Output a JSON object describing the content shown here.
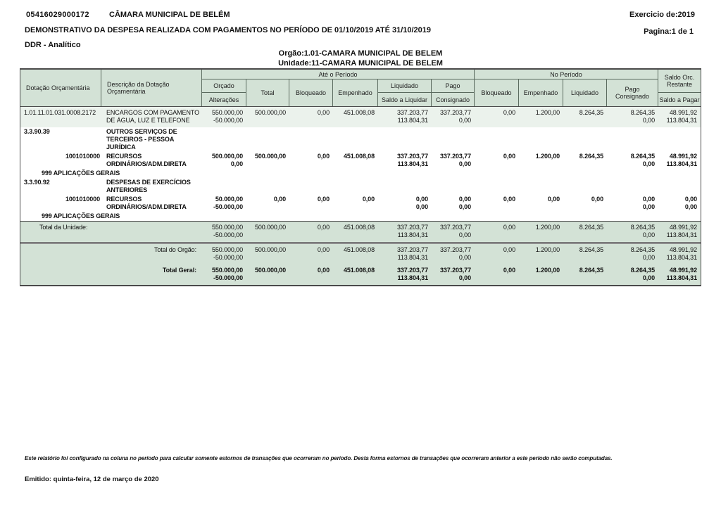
{
  "page_header": {
    "code": "05416029000172",
    "entity": "CÂMARA MUNICIPAL DE BELÉM",
    "title": "DEMONSTRATIVO DA DESPESA REALIZADA COM PAGAMENTOS NO PERÍODO DE 01/10/2019 ATÉ 31/10/2019",
    "report_type": "DDR - Analítico",
    "exercise": "Exercicio de:2019",
    "page": "Pagina:1 de 1",
    "orgao": "Orgão:1.01-CAMARA MUNICIPAL DE BELEM",
    "unidade": "Unidade:11-CAMARA MUNICIPAL DE BELEM"
  },
  "colors": {
    "header_band_green": "#d3e2d6",
    "row_stripe_green": "#ebf2ec",
    "border_gray": "#4a4a4a"
  },
  "table": {
    "headers": {
      "dotacao": "Dotação Orçamentária",
      "descricao_line1": "Descrição da Dotação",
      "descricao_line2": "Orçamentária",
      "group_ate": "Até o Período",
      "group_no": "No Período",
      "orcado": "Orçado",
      "alteracoes": "Alterações",
      "total": "Total",
      "bloqueado": "Bloqueado",
      "empenhado": "Empenhado",
      "liquidado": "Liquidado",
      "saldo_a_liquidar": "Saldo a Liquidar",
      "pago": "Pago",
      "consignado": "Consignado",
      "bloqueado_np": "Bloqueado",
      "empenhado_np": "Empenhado",
      "liquidado_np": "Liquidado",
      "pago_np": "Pago",
      "consignado_np": "Consignado",
      "saldo_orc_line1": "Saldo Orc.",
      "saldo_orc_line2": "Restante",
      "saldo_a_pagar": "Saldo a Pagar"
    },
    "rows": [
      {
        "dotacao": "1.01.11.01.031.0008.2172",
        "descricao1": "ENCARGOS COM PAGAMENTO",
        "descricao2": "DE ÁGUA, LUZ E TELEFONE",
        "orcado": "550.000,00",
        "alteracoes": "-50.000,00",
        "total": "500.000,00",
        "bloqueado": "0,00",
        "empenhado": "451.008,08",
        "liquidado": "337.203,77",
        "saldo_a_liquidar": "113.804,31",
        "pago": "337.203,77",
        "consignado": "0,00",
        "bloqueado_np": "0,00",
        "empenhado_np": "1.200,00",
        "liquidado_np": "8.264,35",
        "pago_np": "8.264,35",
        "consignado_np": "0,00",
        "saldo_restante": "48.991,92",
        "saldo_a_pagar": "113.804,31"
      },
      {
        "dotacao": "3.3.90.39",
        "descricao1": "OUTROS SERVIÇOS DE",
        "descricao2": "TERCEIROS - PESSOA JURÍDICA"
      },
      {
        "dotacao": "1001010000",
        "descricao1": "RECURSOS",
        "descricao2": "ORDINÁRIOS/ADM.DIRETA",
        "orcado": "500.000,00",
        "alteracoes": "0,00",
        "total": "500.000,00",
        "bloqueado": "0,00",
        "empenhado": "451.008,08",
        "liquidado": "337.203,77",
        "saldo_a_liquidar": "113.804,31",
        "pago": "337.203,77",
        "consignado": "0,00",
        "bloqueado_np": "0,00",
        "empenhado_np": "1.200,00",
        "liquidado_np": "8.264,35",
        "pago_np": "8.264,35",
        "consignado_np": "0,00",
        "saldo_restante": "48.991,92",
        "saldo_a_pagar": "113.804,31"
      },
      {
        "aplicacao": "999 APLICAÇÕES GERAIS"
      },
      {
        "dotacao": "3.3.90.92",
        "descricao1": "DESPESAS DE EXERCÍCIOS",
        "descricao2": "ANTERIORES"
      },
      {
        "dotacao": "1001010000",
        "descricao1": "RECURSOS",
        "descricao2": "ORDINÁRIOS/ADM.DIRETA",
        "orcado": "50.000,00",
        "alteracoes": "-50.000,00",
        "total": "0,00",
        "bloqueado": "0,00",
        "empenhado": "0,00",
        "liquidado": "0,00",
        "saldo_a_liquidar": "0,00",
        "pago": "0,00",
        "consignado": "0,00",
        "bloqueado_np": "0,00",
        "empenhado_np": "0,00",
        "liquidado_np": "0,00",
        "pago_np": "0,00",
        "consignado_np": "0,00",
        "saldo_restante": "0,00",
        "saldo_a_pagar": "0,00"
      },
      {
        "aplicacao": "999 APLICAÇÕES GERAIS"
      }
    ]
  },
  "totals": [
    {
      "label": "Total da Unidade:",
      "orcado": "550.000,00",
      "alteracoes": "-50.000,00",
      "total": "500.000,00",
      "bloqueado": "0,00",
      "empenhado": "451.008,08",
      "liquidado": "337.203,77",
      "saldo_a_liquidar": "113.804,31",
      "pago": "337.203,77",
      "consignado": "0,00",
      "bloqueado_np": "0,00",
      "empenhado_np": "1.200,00",
      "liquidado_np": "8.264,35",
      "pago_np": "8.264,35",
      "consignado_np": "0,00",
      "saldo_restante": "48.991,92",
      "saldo_a_pagar": "113.804,31"
    },
    {
      "label": "Total do Orgão:",
      "orcado": "550.000,00",
      "alteracoes": "-50.000,00",
      "total": "500.000,00",
      "bloqueado": "0,00",
      "empenhado": "451.008,08",
      "liquidado": "337.203,77",
      "saldo_a_liquidar": "113.804,31",
      "pago": "337.203,77",
      "consignado": "0,00",
      "bloqueado_np": "0,00",
      "empenhado_np": "1.200,00",
      "liquidado_np": "8.264,35",
      "pago_np": "8.264,35",
      "consignado_np": "0,00",
      "saldo_restante": "48.991,92",
      "saldo_a_pagar": "113.804,31"
    },
    {
      "label": "Total Geral:",
      "orcado": "550.000,00",
      "alteracoes": "-50.000,00",
      "total": "500.000,00",
      "bloqueado": "0,00",
      "empenhado": "451.008,08",
      "liquidado": "337.203,77",
      "saldo_a_liquidar": "113.804,31",
      "pago": "337.203,77",
      "consignado": "0,00",
      "bloqueado_np": "0,00",
      "empenhado_np": "1.200,00",
      "liquidado_np": "8.264,35",
      "pago_np": "8.264,35",
      "consignado_np": "0,00",
      "saldo_restante": "48.991,92",
      "saldo_a_pagar": "113.804,31"
    }
  ],
  "footer": {
    "note": "Este relatório foi configurado na coluna no período para calcular somente estornos de transações que ocorreram no período. Desta forma estornos de transações que ocorreram anterior a este período não serão computadas.",
    "issued": "Emitido: quinta-feira, 12 de março de 2020"
  }
}
